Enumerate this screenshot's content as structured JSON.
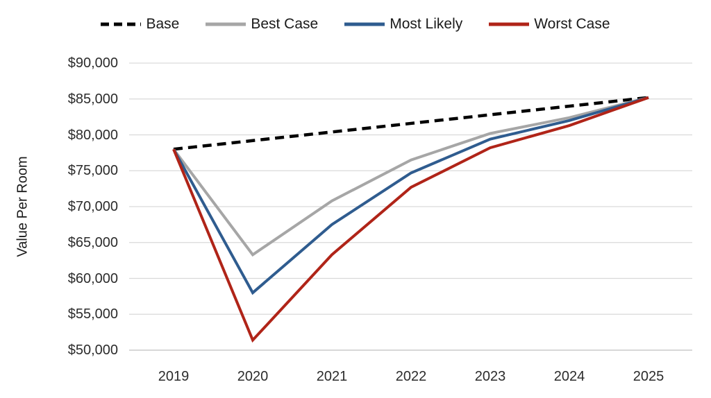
{
  "chart_data": {
    "type": "line",
    "title": "",
    "xlabel": "",
    "ylabel": "Value Per Room",
    "categories": [
      "2019",
      "2020",
      "2021",
      "2022",
      "2023",
      "2024",
      "2025"
    ],
    "y_tick_labels": [
      "$90,000",
      "$85,000",
      "$80,000",
      "$75,000",
      "$70,000",
      "$65,000",
      "$60,000",
      "$55,000",
      "$50,000"
    ],
    "ylim": [
      50000,
      90000
    ],
    "grid": true,
    "legend_position": "top",
    "series": [
      {
        "name": "Base",
        "color": "#000000",
        "style": "dashed",
        "values": [
          78000,
          79200,
          80400,
          81600,
          82800,
          84000,
          85200
        ]
      },
      {
        "name": "Best Case",
        "color": "#A6A6A6",
        "style": "solid",
        "values": [
          78000,
          63300,
          70800,
          76500,
          80200,
          82400,
          85200
        ]
      },
      {
        "name": "Most Likely",
        "color": "#2F5C8F",
        "style": "solid",
        "values": [
          78000,
          58000,
          67500,
          74700,
          79400,
          82000,
          85200
        ]
      },
      {
        "name": "Worst Case",
        "color": "#B02418",
        "style": "solid",
        "values": [
          78000,
          51400,
          63300,
          72700,
          78200,
          81300,
          85200
        ]
      }
    ],
    "gridline_color": "#D9D9D9",
    "baseline_color": "#BFBFBF"
  }
}
